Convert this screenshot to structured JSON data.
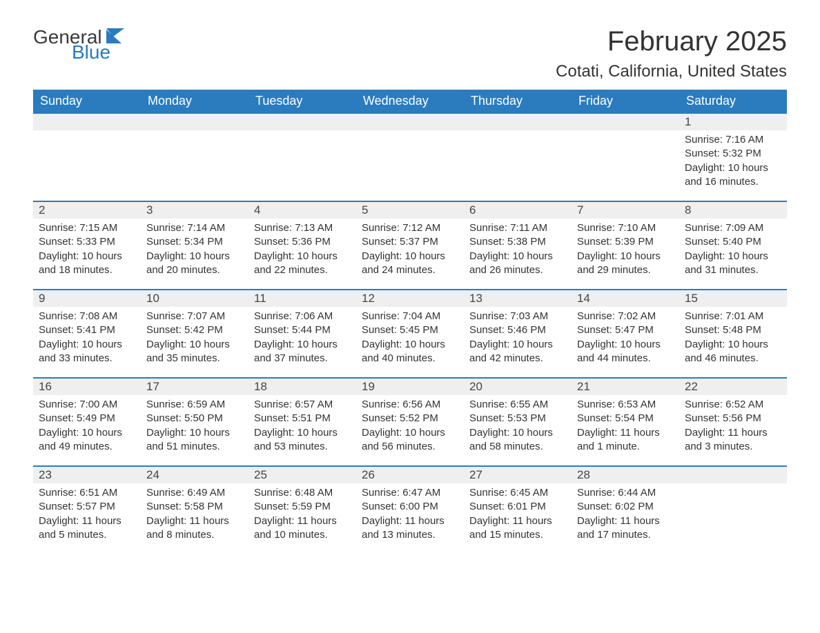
{
  "logo": {
    "text1": "General",
    "text2": "Blue",
    "flag_color": "#2b7bbf"
  },
  "title": "February 2025",
  "location": "Cotati, California, United States",
  "colors": {
    "header_bg": "#2b7bbf",
    "header_text": "#ffffff",
    "daynum_bg": "#efefef",
    "row_border": "#2b7bbf",
    "body_text": "#333333",
    "page_bg": "#ffffff"
  },
  "weekdays": [
    "Sunday",
    "Monday",
    "Tuesday",
    "Wednesday",
    "Thursday",
    "Friday",
    "Saturday"
  ],
  "layout": {
    "columns": 7,
    "rows": 5,
    "first_weekday_index": 6
  },
  "days": [
    {
      "n": 1,
      "sunrise": "7:16 AM",
      "sunset": "5:32 PM",
      "daylight": "10 hours and 16 minutes."
    },
    {
      "n": 2,
      "sunrise": "7:15 AM",
      "sunset": "5:33 PM",
      "daylight": "10 hours and 18 minutes."
    },
    {
      "n": 3,
      "sunrise": "7:14 AM",
      "sunset": "5:34 PM",
      "daylight": "10 hours and 20 minutes."
    },
    {
      "n": 4,
      "sunrise": "7:13 AM",
      "sunset": "5:36 PM",
      "daylight": "10 hours and 22 minutes."
    },
    {
      "n": 5,
      "sunrise": "7:12 AM",
      "sunset": "5:37 PM",
      "daylight": "10 hours and 24 minutes."
    },
    {
      "n": 6,
      "sunrise": "7:11 AM",
      "sunset": "5:38 PM",
      "daylight": "10 hours and 26 minutes."
    },
    {
      "n": 7,
      "sunrise": "7:10 AM",
      "sunset": "5:39 PM",
      "daylight": "10 hours and 29 minutes."
    },
    {
      "n": 8,
      "sunrise": "7:09 AM",
      "sunset": "5:40 PM",
      "daylight": "10 hours and 31 minutes."
    },
    {
      "n": 9,
      "sunrise": "7:08 AM",
      "sunset": "5:41 PM",
      "daylight": "10 hours and 33 minutes."
    },
    {
      "n": 10,
      "sunrise": "7:07 AM",
      "sunset": "5:42 PM",
      "daylight": "10 hours and 35 minutes."
    },
    {
      "n": 11,
      "sunrise": "7:06 AM",
      "sunset": "5:44 PM",
      "daylight": "10 hours and 37 minutes."
    },
    {
      "n": 12,
      "sunrise": "7:04 AM",
      "sunset": "5:45 PM",
      "daylight": "10 hours and 40 minutes."
    },
    {
      "n": 13,
      "sunrise": "7:03 AM",
      "sunset": "5:46 PM",
      "daylight": "10 hours and 42 minutes."
    },
    {
      "n": 14,
      "sunrise": "7:02 AM",
      "sunset": "5:47 PM",
      "daylight": "10 hours and 44 minutes."
    },
    {
      "n": 15,
      "sunrise": "7:01 AM",
      "sunset": "5:48 PM",
      "daylight": "10 hours and 46 minutes."
    },
    {
      "n": 16,
      "sunrise": "7:00 AM",
      "sunset": "5:49 PM",
      "daylight": "10 hours and 49 minutes."
    },
    {
      "n": 17,
      "sunrise": "6:59 AM",
      "sunset": "5:50 PM",
      "daylight": "10 hours and 51 minutes."
    },
    {
      "n": 18,
      "sunrise": "6:57 AM",
      "sunset": "5:51 PM",
      "daylight": "10 hours and 53 minutes."
    },
    {
      "n": 19,
      "sunrise": "6:56 AM",
      "sunset": "5:52 PM",
      "daylight": "10 hours and 56 minutes."
    },
    {
      "n": 20,
      "sunrise": "6:55 AM",
      "sunset": "5:53 PM",
      "daylight": "10 hours and 58 minutes."
    },
    {
      "n": 21,
      "sunrise": "6:53 AM",
      "sunset": "5:54 PM",
      "daylight": "11 hours and 1 minute."
    },
    {
      "n": 22,
      "sunrise": "6:52 AM",
      "sunset": "5:56 PM",
      "daylight": "11 hours and 3 minutes."
    },
    {
      "n": 23,
      "sunrise": "6:51 AM",
      "sunset": "5:57 PM",
      "daylight": "11 hours and 5 minutes."
    },
    {
      "n": 24,
      "sunrise": "6:49 AM",
      "sunset": "5:58 PM",
      "daylight": "11 hours and 8 minutes."
    },
    {
      "n": 25,
      "sunrise": "6:48 AM",
      "sunset": "5:59 PM",
      "daylight": "11 hours and 10 minutes."
    },
    {
      "n": 26,
      "sunrise": "6:47 AM",
      "sunset": "6:00 PM",
      "daylight": "11 hours and 13 minutes."
    },
    {
      "n": 27,
      "sunrise": "6:45 AM",
      "sunset": "6:01 PM",
      "daylight": "11 hours and 15 minutes."
    },
    {
      "n": 28,
      "sunrise": "6:44 AM",
      "sunset": "6:02 PM",
      "daylight": "11 hours and 17 minutes."
    }
  ],
  "labels": {
    "sunrise": "Sunrise:",
    "sunset": "Sunset:",
    "daylight": "Daylight:"
  }
}
